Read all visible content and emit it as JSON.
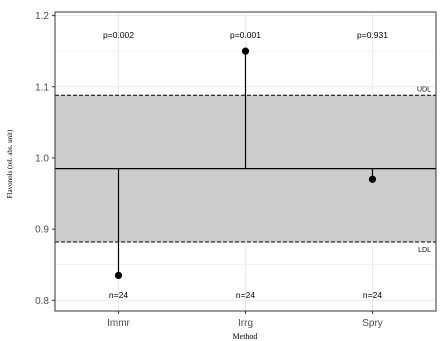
{
  "chart_data": {
    "type": "lollipop",
    "title": "",
    "xlabel": "Method",
    "ylabel": "Flavonols (rel. abs. unit)",
    "ylim": [
      0.785,
      1.205
    ],
    "yticks": [
      0.8,
      0.9,
      1.0,
      1.1,
      1.2
    ],
    "ytick_labels": [
      "0.8",
      "0.9",
      "1.0",
      "1.1",
      "1.2"
    ],
    "grid": true,
    "categories": [
      "Immr",
      "Irrg",
      "Spry"
    ],
    "values": [
      0.835,
      1.15,
      0.97
    ],
    "center_line": 0.985,
    "udl": 1.088,
    "ldl": 0.882,
    "udl_label": "UDL",
    "ldl_label": "LDL",
    "p_values": [
      "p=0.002",
      "p=0.001",
      "p=0.931"
    ],
    "n_values": [
      "n=24",
      "n=24",
      "n=24"
    ],
    "colors": {
      "band": "#cccccc",
      "points": "#000000",
      "grid": "#ebebeb",
      "border": "#333333"
    }
  }
}
